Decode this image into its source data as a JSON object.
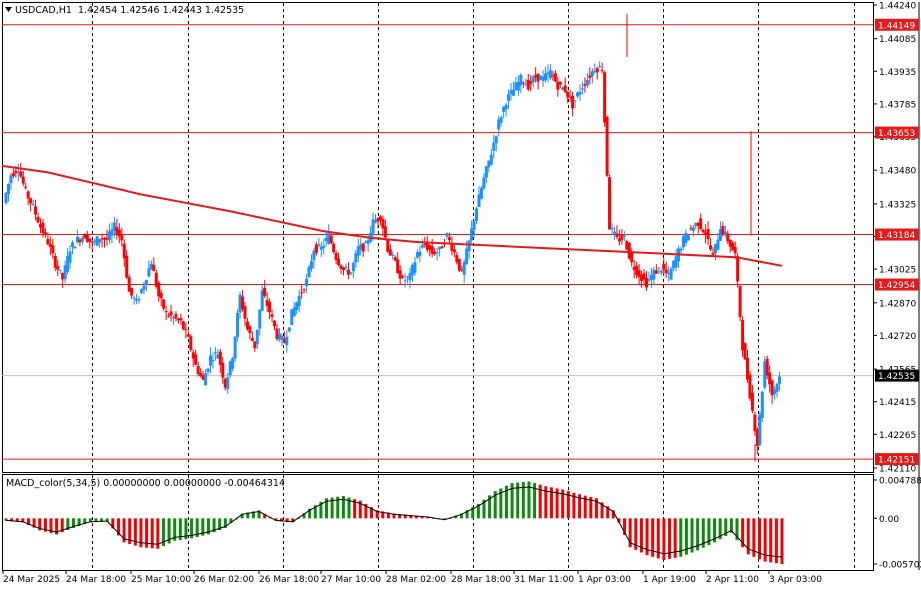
{
  "header": {
    "symbol": "USDCAD,H1",
    "ohlc": "1.42454 1.42546 1.42443 1.42535"
  },
  "macd": {
    "label": "MACD_color(5,34,5) 0.00000000 0.00000000 -0.00464314",
    "ticks": [
      "0.0047885",
      "0.00",
      "-0.0057025"
    ]
  },
  "colors": {
    "bull": "#1e90ff",
    "bear": "#ff0000",
    "ma": "#e31a1c",
    "level_line": "#e31a1c",
    "grid": "#000000",
    "hist_up": "#118811",
    "hist_down": "#ee0000"
  },
  "chart_data": {
    "type": "candlestick",
    "title": "USDCAD,H1",
    "ylim": [
      1.4211,
      1.4424
    ],
    "y_ticks": [
      "1.44240",
      "1.44085",
      "1.43935",
      "1.43785",
      "1.43635",
      "1.43480",
      "1.43325",
      "1.43175",
      "1.43025",
      "1.42870",
      "1.42720",
      "1.42565",
      "1.42415",
      "1.42265",
      "1.42110"
    ],
    "x_ticks": [
      "24 Mar 2025",
      "24 Mar 18:00",
      "25 Mar 10:00",
      "26 Mar 02:00",
      "26 Mar 18:00",
      "27 Mar 10:00",
      "28 Mar 02:00",
      "28 Mar 18:00",
      "31 Mar 11:00",
      "1 Apr 03:00",
      "1 Apr 19:00",
      "2 Apr 11:00",
      "3 Apr 03:00"
    ],
    "levels": [
      "1.44149",
      "1.43653",
      "1.43184",
      "1.42954",
      "1.42151"
    ],
    "current_price": "1.42535",
    "close_path": [
      1.4333,
      1.4346,
      1.4349,
      1.4338,
      1.4331,
      1.4322,
      1.4315,
      1.4305,
      1.4298,
      1.4312,
      1.4316,
      1.4318,
      1.4314,
      1.4317,
      1.4316,
      1.4322,
      1.4316,
      1.4292,
      1.4287,
      1.4296,
      1.4306,
      1.429,
      1.4282,
      1.428,
      1.4278,
      1.427,
      1.4258,
      1.4251,
      1.4262,
      1.4264,
      1.4249,
      1.4263,
      1.429,
      1.4275,
      1.4267,
      1.4292,
      1.4283,
      1.4272,
      1.4269,
      1.4282,
      1.429,
      1.4297,
      1.4312,
      1.4312,
      1.4318,
      1.4308,
      1.4302,
      1.4301,
      1.4312,
      1.4313,
      1.4324,
      1.4327,
      1.4312,
      1.4305,
      1.4297,
      1.4299,
      1.431,
      1.4314,
      1.431,
      1.4311,
      1.4318,
      1.431,
      1.43,
      1.4315,
      1.4331,
      1.4344,
      1.4356,
      1.437,
      1.438,
      1.4385,
      1.439,
      1.4387,
      1.4391,
      1.439,
      1.4393,
      1.4387,
      1.4385,
      1.4378,
      1.4385,
      1.439,
      1.4395,
      1.4395,
      1.4322,
      1.4316,
      1.4317,
      1.4305,
      1.43,
      1.4296,
      1.4301,
      1.4303,
      1.4299,
      1.4308,
      1.4316,
      1.4321,
      1.4324,
      1.4319,
      1.4308,
      1.4322,
      1.4316,
      1.4309,
      1.4267,
      1.4245,
      1.4222,
      1.426,
      1.4245,
      1.4253
    ],
    "ma_path": [
      1.435,
      1.4347,
      1.4342,
      1.4337,
      1.4333,
      1.4329,
      1.43245,
      1.432,
      1.4317,
      1.4315,
      1.4314,
      1.4313,
      1.4312,
      1.4311,
      1.431,
      1.4309,
      1.4308,
      1.4304
    ],
    "macd_hist": [
      -0.0003,
      -0.0005,
      -0.0015,
      -0.002,
      -0.0012,
      -0.0005,
      -0.0004,
      -0.003,
      -0.0036,
      -0.0038,
      -0.0028,
      -0.0025,
      -0.002,
      -0.0012,
      0.0006,
      0.001,
      -0.0003,
      -0.0005,
      0.0012,
      0.0025,
      0.0028,
      0.0022,
      0.001,
      0.0006,
      0.0004,
      0.0002,
      -0.0002,
      0.0006,
      0.0018,
      0.0034,
      0.0044,
      0.0046,
      0.004,
      0.0036,
      0.003,
      0.0025,
      0.001,
      -0.0036,
      -0.0046,
      -0.0052,
      -0.0048,
      -0.004,
      -0.003,
      -0.0018,
      -0.0045,
      -0.0054,
      -0.0057
    ]
  }
}
